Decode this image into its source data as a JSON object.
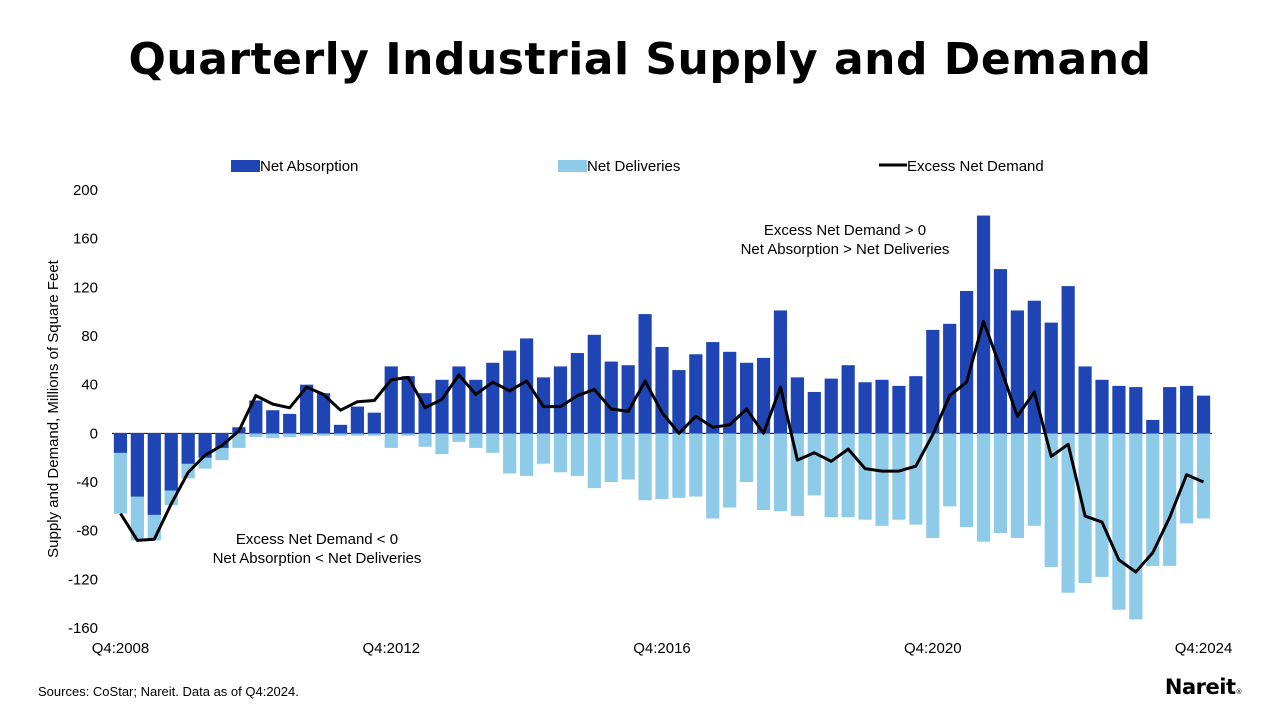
{
  "title": "Quarterly Industrial Supply and Demand",
  "source": "Sources: CoStar; Nareit. Data as of Q4:2024.",
  "logo": "Nareit",
  "colors": {
    "absorption": "#1f45b5",
    "deliveries": "#8ecbe8",
    "line": "#000000"
  },
  "chart_data": {
    "type": "bar",
    "title": "Quarterly Industrial Supply and Demand",
    "ylabel": "Supply and Demand, Millions of Square Feet",
    "xlabel": "",
    "ylim": [
      -160,
      200
    ],
    "yticks": [
      "200",
      "160",
      "120",
      "80",
      "40",
      "0",
      "-40",
      "-80",
      "-120",
      "-160"
    ],
    "x_tick_labels": [
      {
        "index": 0,
        "label": "Q4:2008"
      },
      {
        "index": 16,
        "label": "Q4:2012"
      },
      {
        "index": 32,
        "label": "Q4:2016"
      },
      {
        "index": 48,
        "label": "Q4:2020"
      },
      {
        "index": 64,
        "label": "Q4:2024"
      }
    ],
    "legend": [
      "Net Absorption",
      "Net Deliveries",
      "Excess Net Demand"
    ],
    "annotations": {
      "positive": [
        "Excess Net Demand > 0",
        "Net Absorption > Net Deliveries"
      ],
      "negative": [
        "Excess Net Demand < 0",
        "Net Absorption < Net Deliveries"
      ]
    },
    "series": [
      {
        "name": "Net Absorption",
        "values": [
          -16,
          -52,
          -67,
          -47,
          -25,
          -20,
          -12,
          5,
          27,
          19,
          16,
          40,
          33,
          7,
          22,
          17,
          55,
          47,
          33,
          44,
          55,
          44,
          58,
          68,
          78,
          46,
          55,
          66,
          81,
          59,
          56,
          98,
          71,
          52,
          65,
          75,
          67,
          58,
          62,
          101,
          46,
          34,
          45,
          56,
          42,
          44,
          39,
          47,
          85,
          90,
          117,
          179,
          135,
          101,
          109,
          91,
          121,
          55,
          44,
          39,
          38,
          11,
          38,
          39,
          31
        ]
      },
      {
        "name": "Net Deliveries",
        "values": [
          -66,
          -88,
          -88,
          -59,
          -37,
          -29,
          -22,
          -12,
          -3,
          -4,
          -3,
          -2,
          -2,
          -2,
          -2,
          -2,
          -12,
          -2,
          -11,
          -17,
          -7,
          -12,
          -16,
          -33,
          -35,
          -25,
          -32,
          -35,
          -45,
          -40,
          -38,
          -55,
          -54,
          -53,
          -52,
          -70,
          -61,
          -40,
          -63,
          -64,
          -68,
          -51,
          -69,
          -69,
          -71,
          -76,
          -71,
          -75,
          -86,
          -60,
          -77,
          -89,
          -82,
          -86,
          -76,
          -110,
          -131,
          -123,
          -118,
          -145,
          -153,
          -109,
          -109,
          -74,
          -70
        ]
      },
      {
        "name": "Excess Net Demand",
        "values": [
          -66,
          -88,
          -87,
          -58,
          -32,
          -18,
          -10,
          2,
          31,
          24,
          21,
          38,
          32,
          19,
          26,
          27,
          44,
          46,
          21,
          28,
          48,
          32,
          42,
          35,
          43,
          22,
          22,
          31,
          36,
          20,
          18,
          43,
          17,
          0,
          14,
          5,
          7,
          20,
          0,
          38,
          -22,
          -16,
          -23,
          -13,
          -29,
          -31,
          -31,
          -27,
          -1,
          31,
          42,
          92,
          54,
          14,
          34,
          -19,
          -9,
          -68,
          -73,
          -104,
          -114,
          -98,
          -69,
          -34,
          -40
        ]
      }
    ]
  }
}
